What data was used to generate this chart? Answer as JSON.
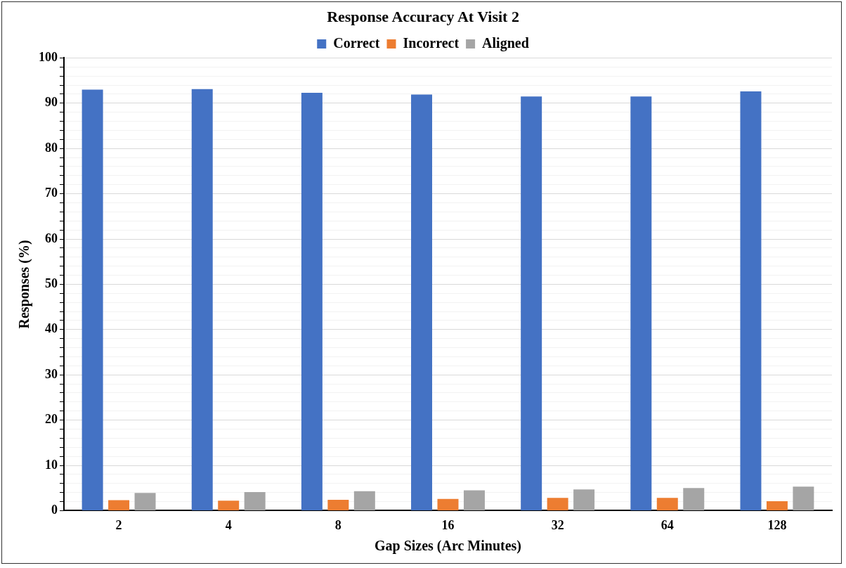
{
  "chart_data": {
    "type": "bar",
    "title": "Response Accuracy At Visit 2",
    "xlabel": "Gap Sizes (Arc Minutes)",
    "ylabel": "Responses (%)",
    "categories": [
      "2",
      "4",
      "8",
      "16",
      "32",
      "64",
      "128"
    ],
    "series": [
      {
        "name": "Correct",
        "color": "#4472c4",
        "values": [
          93.0,
          93.1,
          92.3,
          91.9,
          91.5,
          91.5,
          92.6
        ]
      },
      {
        "name": "Incorrect",
        "color": "#ed7d31",
        "values": [
          2.3,
          2.2,
          2.4,
          2.6,
          2.8,
          2.8,
          2.1
        ]
      },
      {
        "name": "Aligned",
        "color": "#a5a5a5",
        "values": [
          3.9,
          4.1,
          4.3,
          4.5,
          4.7,
          5.0,
          5.3
        ]
      }
    ],
    "ylim": [
      0,
      100
    ],
    "yticks": [
      0,
      {
        "value": 2,
        "label": null
      },
      {
        "value": 4,
        "label": null
      },
      {
        "value": 6,
        "label": null
      },
      {
        "value": 8,
        "label": null
      },
      10,
      {
        "value": 12,
        "label": null
      },
      {
        "value": 14,
        "label": null
      },
      {
        "value": 16,
        "label": null
      },
      {
        "value": 18,
        "label": null
      },
      20,
      {
        "value": 22,
        "label": null
      },
      {
        "value": 24,
        "label": null
      },
      {
        "value": 26,
        "label": null
      },
      {
        "value": 28,
        "label": null
      },
      30,
      {
        "value": 32,
        "label": null
      },
      {
        "value": 34,
        "label": null
      },
      {
        "value": 36,
        "label": null
      },
      {
        "value": 38,
        "label": null
      },
      40,
      {
        "value": 42,
        "label": null
      },
      {
        "value": 44,
        "label": null
      },
      {
        "value": 46,
        "label": null
      },
      {
        "value": 48,
        "label": null
      },
      50,
      {
        "value": 52,
        "label": null
      },
      {
        "value": 54,
        "label": null
      },
      {
        "value": 56,
        "label": null
      },
      {
        "value": 58,
        "label": null
      },
      60,
      {
        "value": 62,
        "label": null
      },
      {
        "value": 64,
        "label": null
      },
      {
        "value": 66,
        "label": null
      },
      {
        "value": 68,
        "label": null
      },
      70,
      {
        "value": 72,
        "label": null
      },
      {
        "value": 74,
        "label": null
      },
      {
        "value": 76,
        "label": null
      },
      {
        "value": 78,
        "label": null
      },
      80,
      {
        "value": 82,
        "label": null
      },
      {
        "value": 84,
        "label": null
      },
      {
        "value": 86,
        "label": null
      },
      {
        "value": 88,
        "label": null
      },
      90,
      {
        "value": 92,
        "label": null
      },
      {
        "value": 94,
        "label": null
      },
      {
        "value": 96,
        "label": null
      },
      {
        "value": 98,
        "label": null
      },
      100
    ],
    "grid": "y",
    "legend": "top"
  }
}
